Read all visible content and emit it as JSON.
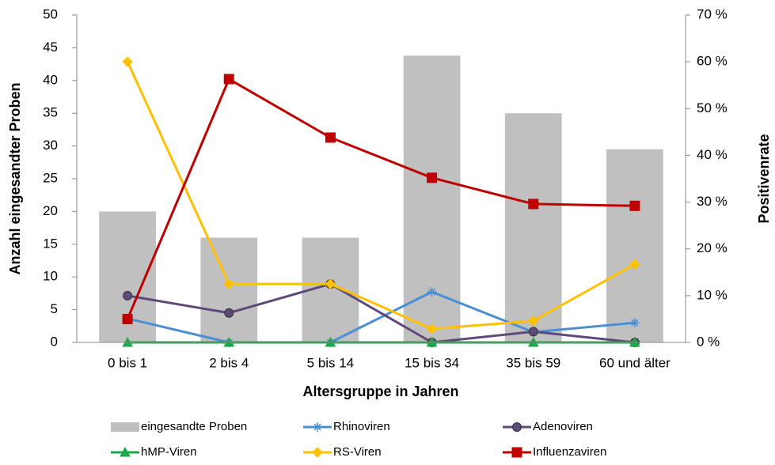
{
  "chart_data": {
    "type": "bar-line",
    "x_label": "Altersgruppe in Jahren",
    "y_label": "Anzahl eingesandter Proben",
    "y2_label": "Positivenrate",
    "categories": [
      "0 bis 1",
      "2 bis 4",
      "5 bis 14",
      "15 bis 34",
      "35 bis 59",
      "60 und älter"
    ],
    "ylim": [
      0,
      50
    ],
    "yticks": [
      0,
      5,
      10,
      15,
      20,
      25,
      30,
      35,
      40,
      45,
      50
    ],
    "y2lim": [
      0,
      70
    ],
    "y2ticks": [
      {
        "value": 0,
        "label": "0 %"
      },
      {
        "value": 10,
        "label": "10 %"
      },
      {
        "value": 20,
        "label": "20 %"
      },
      {
        "value": 30,
        "label": "30 %"
      },
      {
        "value": 40,
        "label": "40 %"
      },
      {
        "value": 50,
        "label": "50 %"
      },
      {
        "value": 60,
        "label": "60 %"
      },
      {
        "value": 70,
        "label": "70 %"
      }
    ],
    "series": [
      {
        "name": "eingesandte Proben",
        "type": "bar",
        "color": "#c0c0c0",
        "values": [
          20,
          16,
          16,
          43.8,
          35,
          29.5
        ]
      },
      {
        "name": "Rhinoviren",
        "type": "line",
        "marker": "star",
        "axis": "y2",
        "color": "#4a8fd4",
        "values": [
          5.1,
          0,
          0,
          10.8,
          2.2,
          4.2
        ]
      },
      {
        "name": "Adenoviren",
        "type": "line",
        "marker": "circle",
        "axis": "y2",
        "color": "#5e4a7a",
        "values": [
          10,
          6.3,
          12.5,
          0,
          2.3,
          0
        ]
      },
      {
        "name": "hMP-Viren",
        "type": "line",
        "marker": "triangle",
        "axis": "y2",
        "color": "#1aa84a",
        "values": [
          0,
          0,
          0,
          0,
          0,
          0
        ]
      },
      {
        "name": "RS-Viren",
        "type": "line",
        "marker": "diamond",
        "axis": "y2",
        "color": "#ffc000",
        "values": [
          60,
          12.5,
          12.5,
          2.9,
          4.6,
          16.7
        ]
      },
      {
        "name": "Influenzaviren",
        "type": "line",
        "marker": "square",
        "axis": "y2",
        "color": "#c00000",
        "values": [
          5,
          56.3,
          43.8,
          35.2,
          29.6,
          29.2
        ]
      }
    ]
  }
}
